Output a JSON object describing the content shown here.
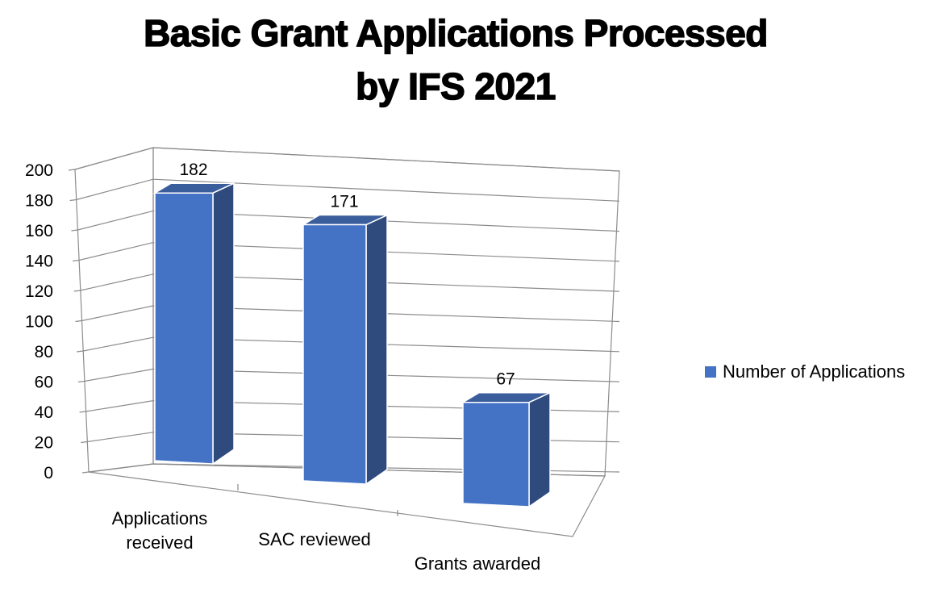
{
  "chart_data": {
    "type": "bar",
    "title": "Basic Grant Applications Processed by IFS 2021",
    "title_lines": [
      "Basic Grant Applications Processed",
      "by IFS 2021"
    ],
    "categories": [
      "Applications received",
      "SAC reviewed",
      "Grants awarded"
    ],
    "category_lines": [
      [
        "Applications",
        "received"
      ],
      [
        "SAC reviewed"
      ],
      [
        "Grants awarded"
      ]
    ],
    "series": [
      {
        "name": "Number of Applications",
        "values": [
          182,
          171,
          67
        ],
        "color": "#4472C4"
      }
    ],
    "data_labels": [
      "182",
      "171",
      "67"
    ],
    "ylim": [
      0,
      200
    ],
    "yticks": [
      0,
      20,
      40,
      60,
      80,
      100,
      120,
      140,
      160,
      180,
      200
    ],
    "grid": true,
    "style": "3d",
    "legend_position": "right"
  }
}
